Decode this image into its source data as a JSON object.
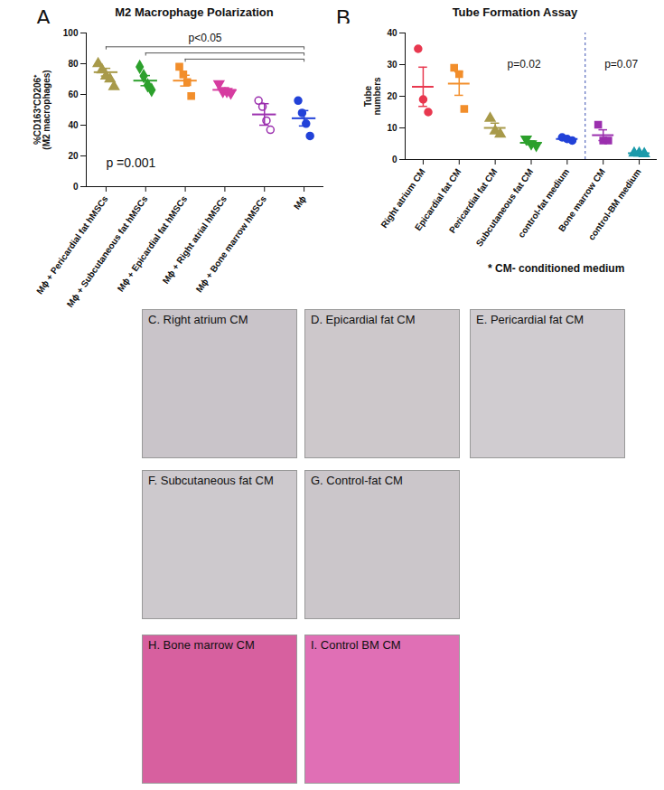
{
  "chart_data": [
    {
      "type": "scatter",
      "panel": "A",
      "title": "M2 Macrophage Polarization",
      "y_label": "%CD163⁺CD206⁺\n(M2 macrophages)",
      "categories": [
        "Mϕ + Pericardial fat hMSCs",
        "Mϕ + Subcutaneous fat hMSCs",
        "Mϕ + Epicardial fat hMSCs",
        "Mϕ + Right atrial hMSCs",
        "Mϕ + Bone marrow hMSCs",
        "Mϕ"
      ],
      "points": [
        [
          80,
          76,
          72,
          70,
          65
        ],
        [
          78,
          72,
          66,
          63
        ],
        [
          78,
          73,
          68,
          59
        ],
        [
          67,
          62,
          62,
          61
        ],
        [
          56,
          52,
          43,
          37
        ],
        [
          56,
          48,
          41,
          33
        ]
      ],
      "means": [
        74.5,
        69,
        69,
        63,
        47,
        44.5
      ],
      "sems": [
        2.5,
        3.3,
        3.5,
        1.4,
        7,
        5
      ],
      "colors": [
        "#a89a4a",
        "#2ca02c",
        "#f28e2b",
        "#d63ca0",
        "#9b2fae",
        "#2242d8"
      ],
      "markers": [
        "triangle",
        "diamond",
        "square",
        "triangle-down",
        "open-circle",
        "circle"
      ],
      "ylim": [
        0,
        100
      ],
      "yticks": [
        0,
        20,
        40,
        60,
        80,
        100
      ],
      "comparisons": [
        [
          "Mϕ + Pericardial fat hMSCs",
          "Mϕ"
        ],
        [
          "Mϕ + Subcutaneous fat hMSCs",
          "Mϕ"
        ],
        [
          "Mϕ + Epicardial fat hMSCs",
          "Mϕ"
        ]
      ],
      "annotations": {
        "pairwise": "p<0.05",
        "overall": "p =0.001"
      }
    },
    {
      "type": "scatter",
      "panel": "B",
      "title": "Tube Formation Assay",
      "y_label": "Tube\nnumbers",
      "categories": [
        "Right atrium CM",
        "Epicardial fat CM",
        "Pericardial fat CM",
        "Subcutaneous fat CM",
        "control-fat medium",
        "Bone marrow CM",
        "control-BM medium"
      ],
      "points": [
        [
          35,
          19,
          15
        ],
        [
          29,
          27,
          16
        ],
        [
          13,
          9,
          8
        ],
        [
          6.5,
          5,
          4.5
        ],
        [
          7,
          6.5,
          6
        ],
        [
          11,
          6,
          6
        ],
        [
          2,
          2,
          1.8
        ]
      ],
      "means": [
        23,
        24,
        10,
        5.3,
        6.5,
        7.7,
        2
      ],
      "sems": [
        6.2,
        3.7,
        1.5,
        0.6,
        0.3,
        1.7,
        0.2
      ],
      "colors": [
        "#e8384f",
        "#f28e2b",
        "#a89a4a",
        "#2ca02c",
        "#2242d8",
        "#9b2fae",
        "#1b9aaa"
      ],
      "markers": [
        "circle",
        "square",
        "triangle",
        "triangle-down",
        "circle",
        "square",
        "triangle"
      ],
      "ylim": [
        0,
        40
      ],
      "yticks": [
        0,
        10,
        20,
        30,
        40
      ],
      "separator_after": "control-fat medium",
      "annotations": {
        "left": "p=0.02",
        "right": "p=0.07"
      },
      "footnote": "* CM- conditioned medium"
    }
  ],
  "image_panels": [
    {
      "label": "C. Right atrium CM",
      "color": "#c9c4c9"
    },
    {
      "label": "D. Epicardial fat CM",
      "color": "#cdc8cb"
    },
    {
      "label": "E. Pericardial fat CM",
      "color": "#d0ccd0"
    },
    {
      "label": "F. Subcutaneous fat CM",
      "color": "#cdc9cd"
    },
    {
      "label": "G. Control-fat CM",
      "color": "#cbc6ca"
    },
    {
      "label": "H. Bone marrow CM",
      "color": "#d7609f"
    },
    {
      "label": "I. Control BM CM",
      "color": "#e06fb5"
    }
  ]
}
